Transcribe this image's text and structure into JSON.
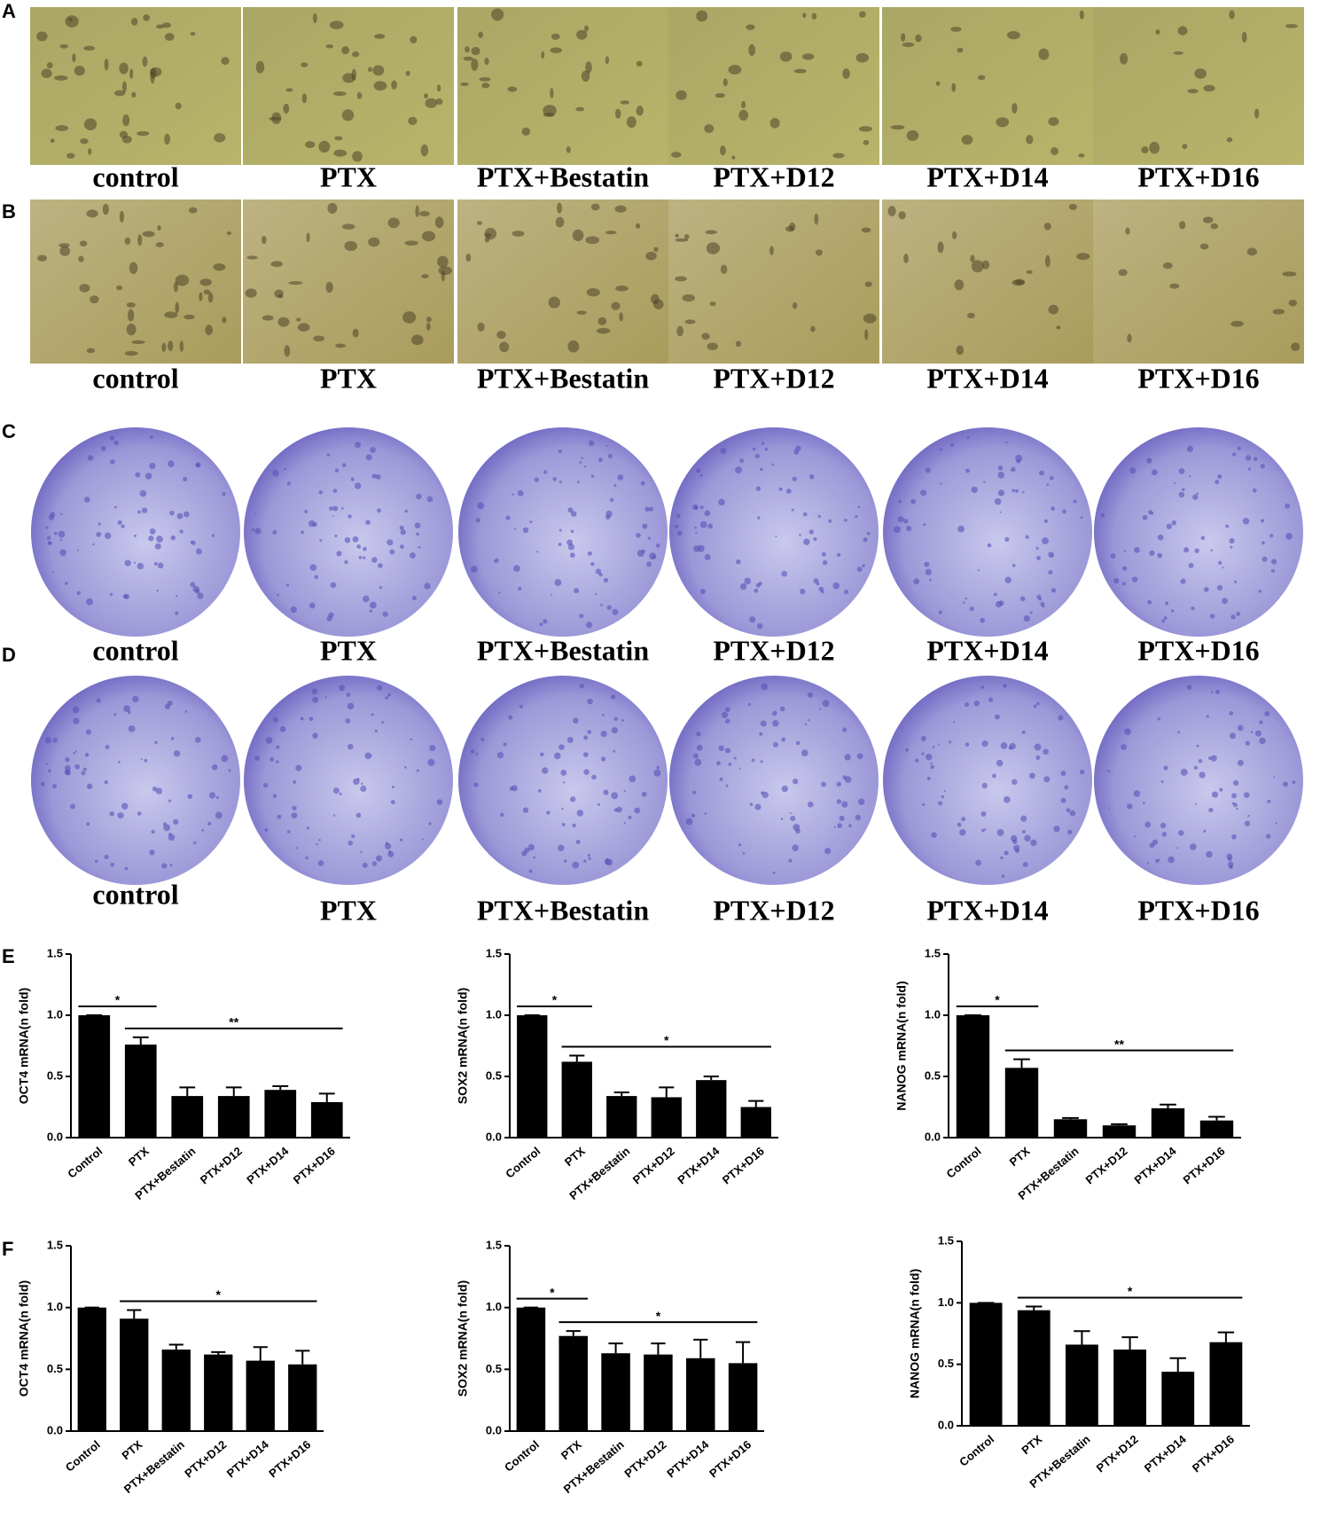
{
  "figure": {
    "letters": [
      "A",
      "B",
      "C",
      "D",
      "E",
      "F"
    ],
    "image_rows": [
      {
        "labels": [
          "control",
          "PTX",
          "PTX+Bestatin",
          "PTX+D12",
          "PTX+D14",
          "PTX+D16"
        ]
      },
      {
        "labels": [
          "control",
          "PTX",
          "PTX+Bestatin",
          "PTX+D12",
          "PTX+D14",
          "PTX+D16"
        ]
      },
      {
        "labels": [
          "control",
          "PTX",
          "PTX+Bestatin",
          "PTX+D12",
          "PTX+D14",
          "PTX+D16"
        ]
      },
      {
        "labels": [
          "control",
          "PTX",
          "PTX+Bestatin",
          "PTX+D12",
          "PTX+D14",
          "PTX+D16"
        ]
      }
    ]
  },
  "chart_data": [
    {
      "type": "bar",
      "y_label": "OCT4 mRNA(n fold)",
      "categories": [
        "Control",
        "PTX",
        "PTX+Bestatin",
        "PTX+D12",
        "PTX+D14",
        "PTX+D16"
      ],
      "values": [
        1.0,
        0.76,
        0.34,
        0.34,
        0.39,
        0.29
      ],
      "errors": [
        0,
        0.06,
        0.07,
        0.07,
        0.03,
        0.07
      ],
      "color": "#000000",
      "ylim": [
        0,
        1.5
      ],
      "yticks": [
        {
          "value": 0,
          "label": "0.0"
        },
        0.5,
        {
          "value": 1,
          "label": "1.0"
        },
        1.5
      ],
      "annotations": [
        {
          "text": "*",
          "span": [
            "Control",
            "PTX"
          ]
        },
        {
          "text": "**",
          "span": [
            "PTX",
            "PTX+D16"
          ]
        }
      ]
    },
    {
      "type": "bar",
      "y_label": "SOX2 mRNA(n fold)",
      "categories": [
        "Control",
        "PTX",
        "PTX+Bestatin",
        "PTX+D12",
        "PTX+D14",
        "PTX+D16"
      ],
      "values": [
        1.0,
        0.62,
        0.34,
        0.33,
        0.47,
        0.25
      ],
      "errors": [
        0,
        0.05,
        0.03,
        0.08,
        0.03,
        0.05
      ],
      "color": "#000000",
      "ylim": [
        0,
        1.5
      ],
      "yticks": [
        {
          "value": 0,
          "label": "0.0"
        },
        0.5,
        {
          "value": 1,
          "label": "1.0"
        },
        1.5
      ],
      "annotations": [
        {
          "text": "*",
          "span": [
            "Control",
            "PTX"
          ]
        },
        {
          "text": "*",
          "span": [
            "PTX",
            "PTX+D16"
          ]
        }
      ]
    },
    {
      "type": "bar",
      "y_label": "NANOG mRNA(n fold)",
      "categories": [
        "Control",
        "PTX",
        "PTX+Bestatin",
        "PTX+D12",
        "PTX+D14",
        "PTX+D16"
      ],
      "values": [
        1.0,
        0.57,
        0.15,
        0.1,
        0.24,
        0.14
      ],
      "errors": [
        0,
        0.07,
        0.01,
        0.01,
        0.03,
        0.03
      ],
      "color": "#000000",
      "ylim": [
        0,
        1.5
      ],
      "yticks": [
        {
          "value": 0,
          "label": "0.0"
        },
        0.5,
        {
          "value": 1,
          "label": "1.0"
        },
        1.5
      ],
      "annotations": [
        {
          "text": "*",
          "span": [
            "Control",
            "PTX"
          ]
        },
        {
          "text": "**",
          "span": [
            "PTX",
            "PTX+D16"
          ]
        }
      ]
    },
    {
      "type": "bar",
      "y_label": "OCT4 mRNA(n fold)",
      "categories": [
        "Control",
        "PTX",
        "PTX+Bestatin",
        "PTX+D12",
        "PTX+D14",
        "PTX+D16"
      ],
      "values": [
        1.0,
        0.91,
        0.66,
        0.62,
        0.57,
        0.54
      ],
      "errors": [
        0,
        0.07,
        0.04,
        0.02,
        0.11,
        0.11
      ],
      "color": "#000000",
      "ylim": [
        0,
        1.5
      ],
      "yticks": [
        {
          "value": 0,
          "label": "0.0"
        },
        0.5,
        {
          "value": 1,
          "label": "1.0"
        },
        1.5
      ],
      "annotations": [
        {
          "text": "*",
          "span": [
            "PTX",
            "PTX+D16"
          ]
        }
      ]
    },
    {
      "type": "bar",
      "y_label": "SOX2 mRNA(n fold)",
      "categories": [
        "Control",
        "PTX",
        "PTX+Bestatin",
        "PTX+D12",
        "PTX+D14",
        "PTX+D16"
      ],
      "values": [
        1.0,
        0.77,
        0.63,
        0.62,
        0.59,
        0.55
      ],
      "errors": [
        0,
        0.04,
        0.08,
        0.09,
        0.15,
        0.17
      ],
      "color": "#000000",
      "ylim": [
        0,
        1.5
      ],
      "yticks": [
        {
          "value": 0,
          "label": "0.0"
        },
        0.5,
        {
          "value": 1,
          "label": "1.0"
        },
        1.5
      ],
      "annotations": [
        {
          "text": "*",
          "span": [
            "Control",
            "PTX"
          ]
        },
        {
          "text": "*",
          "span": [
            "PTX",
            "PTX+D16"
          ]
        }
      ]
    },
    {
      "type": "bar",
      "y_label": "NANOG mRNA(n fold)",
      "categories": [
        "Control",
        "PTX",
        "PTX+Bestatin",
        "PTX+D12",
        "PTX+D14",
        "PTX+D16"
      ],
      "values": [
        1.0,
        0.94,
        0.66,
        0.62,
        0.44,
        0.68
      ],
      "errors": [
        0,
        0.03,
        0.11,
        0.1,
        0.11,
        0.08
      ],
      "color": "#000000",
      "ylim": [
        0,
        1.5
      ],
      "yticks": [
        {
          "value": 0,
          "label": "0.0"
        },
        0.5,
        {
          "value": 1,
          "label": "1.0"
        },
        1.5
      ],
      "annotations": [
        {
          "text": "*",
          "span": [
            "PTX",
            "PTX+D16"
          ]
        }
      ]
    }
  ]
}
